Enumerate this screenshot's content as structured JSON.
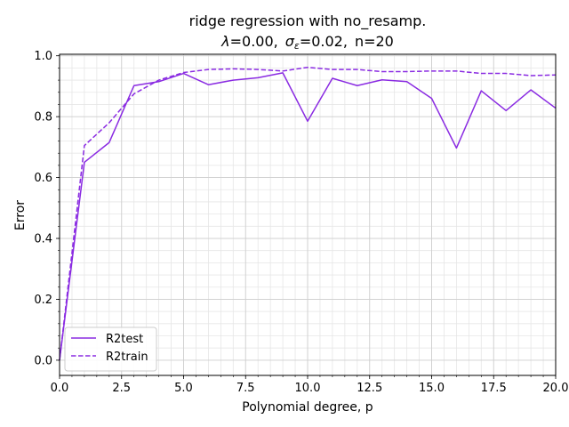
{
  "chart_data": {
    "type": "line",
    "title_line1": "ridge regression with no_resamp.",
    "title_lambda": "λ",
    "title_lambda_value": "=0.00,",
    "title_sigma": "σ",
    "title_sigma_sub": "ε",
    "title_sigma_value": "=0.02,",
    "title_n": "n=20",
    "xlabel": "Polynomial degree, p",
    "ylabel": "Error",
    "xlim": [
      0,
      20
    ],
    "ylim": [
      -0.05,
      1.005
    ],
    "xticks": [
      0.0,
      2.5,
      5.0,
      7.5,
      10.0,
      12.5,
      15.0,
      17.5,
      20.0
    ],
    "xtick_labels": [
      "0.0",
      "2.5",
      "5.0",
      "7.5",
      "10.0",
      "12.5",
      "15.0",
      "17.5",
      "20.0"
    ],
    "yticks": [
      0.0,
      0.2,
      0.4,
      0.6,
      0.8,
      1.0
    ],
    "ytick_labels": [
      "0.0",
      "0.2",
      "0.4",
      "0.6",
      "0.8",
      "1.0"
    ],
    "grid": true,
    "legend_position": "lower-left",
    "x": [
      0,
      1,
      2,
      3,
      4,
      5,
      6,
      7,
      8,
      9,
      10,
      11,
      12,
      13,
      14,
      15,
      16,
      17,
      18,
      19,
      20
    ],
    "series": [
      {
        "name": "R2test",
        "style": "solid",
        "color": "#8a2be2",
        "values": [
          0.0,
          0.65,
          0.715,
          0.902,
          0.915,
          0.942,
          0.905,
          0.92,
          0.928,
          0.944,
          0.785,
          0.926,
          0.902,
          0.921,
          0.915,
          0.86,
          0.697,
          0.885,
          0.82,
          0.888,
          0.828
        ]
      },
      {
        "name": "R2train",
        "style": "dashed",
        "color": "#8a2be2",
        "values": [
          0.0,
          0.705,
          0.78,
          0.875,
          0.92,
          0.945,
          0.955,
          0.957,
          0.955,
          0.95,
          0.962,
          0.955,
          0.955,
          0.948,
          0.948,
          0.95,
          0.95,
          0.942,
          0.942,
          0.935,
          0.937
        ]
      }
    ]
  }
}
